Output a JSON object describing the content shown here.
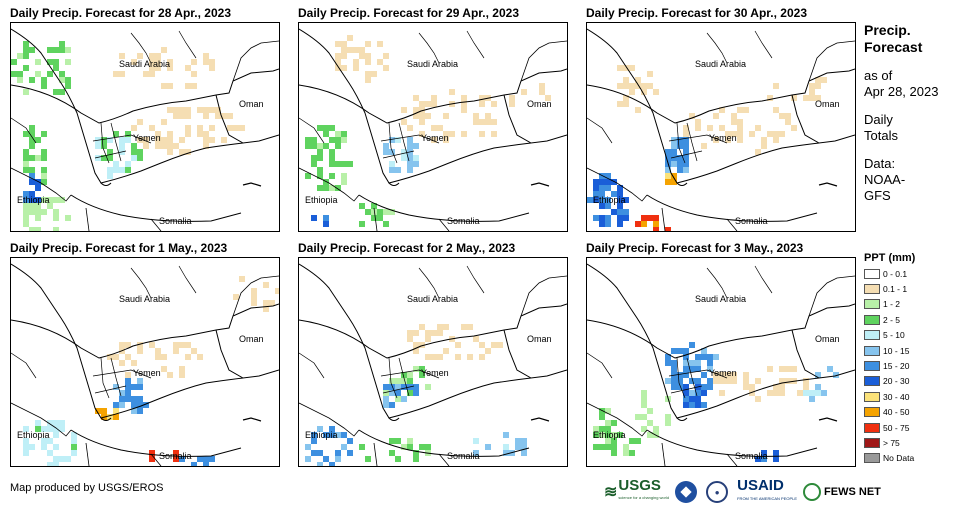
{
  "panels": [
    {
      "title": "Daily Precip. Forecast for 28 Apr., 2023"
    },
    {
      "title": "Daily Precip. Forecast for 29 Apr., 2023"
    },
    {
      "title": "Daily Precip. Forecast for 30 Apr., 2023"
    },
    {
      "title": "Daily Precip. Forecast for 1 May., 2023"
    },
    {
      "title": "Daily Precip. Forecast for 2 May., 2023"
    },
    {
      "title": "Daily Precip. Forecast for 3 May., 2023"
    }
  ],
  "map_labels": {
    "saudi": "Saudi Arabia",
    "oman": "Oman",
    "yemen": "Yemen",
    "ethiopia": "Ethiopia",
    "somalia": "Somalia"
  },
  "side": {
    "title_line1": "Precip.",
    "title_line2": "Forecast",
    "asof_line1": "as of",
    "asof_line2": "Apr 28, 2023",
    "totals_line1": "Daily",
    "totals_line2": "Totals",
    "data_line1": "Data:",
    "data_line2": "NOAA-",
    "data_line3": "GFS"
  },
  "legend": {
    "title": "PPT (mm)",
    "items": [
      {
        "label": "0 - 0.1",
        "color": "#ffffff"
      },
      {
        "label": "0.1 - 1",
        "color": "#f5deb3"
      },
      {
        "label": "1 - 2",
        "color": "#b8f0a8"
      },
      {
        "label": "2 - 5",
        "color": "#5fd35f"
      },
      {
        "label": "5 - 10",
        "color": "#bfeff7"
      },
      {
        "label": "10 - 15",
        "color": "#86c4ee"
      },
      {
        "label": "15 - 20",
        "color": "#3d8fe0"
      },
      {
        "label": "20 - 30",
        "color": "#1a5ed8"
      },
      {
        "label": "30 - 40",
        "color": "#fbe27a"
      },
      {
        "label": "40 - 50",
        "color": "#f5a300"
      },
      {
        "label": "50 - 75",
        "color": "#f03010"
      },
      {
        "label": "> 75",
        "color": "#a01818"
      },
      {
        "label": "No Data",
        "color": "#999999"
      }
    ]
  },
  "credit": "Map produced by USGS/EROS",
  "logos": {
    "usgs": "USGS",
    "usgs_tag": "science for a changing world",
    "usaid": "USAID",
    "usaid_tag": "FROM THE AMERICAN PEOPLE",
    "fews": "FEWS NET"
  }
}
